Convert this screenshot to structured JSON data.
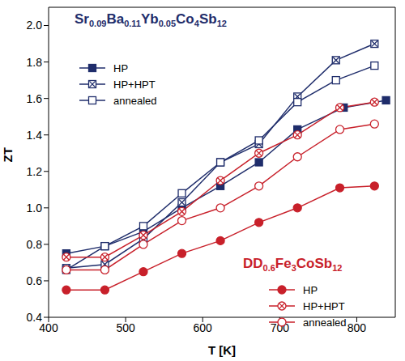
{
  "chart_data": {
    "type": "line",
    "x_label": "T [K]",
    "y_label": "ZT",
    "xlim": [
      400,
      850
    ],
    "xticks": [
      400,
      500,
      600,
      700,
      800
    ],
    "ylim": [
      0.4,
      2.1
    ],
    "yticks": [
      0.4,
      0.6,
      0.8,
      {
        "value": 1,
        "label": "1.0"
      },
      1.2,
      1.4,
      1.6,
      1.8,
      {
        "value": 2,
        "label": "2.0"
      }
    ],
    "grid": false,
    "groups": [
      "Sr0.09Ba0.11Yb0.05Co4Sb12",
      "DD0.6Fe3CoSb12"
    ],
    "series": [
      {
        "name": "HP",
        "group": 0,
        "color": "#1f2d6b",
        "marker": "square",
        "x": [
          423,
          473,
          523,
          573,
          623,
          673,
          723,
          783,
          838
        ],
        "values": [
          0.75,
          0.79,
          0.87,
          1.0,
          1.12,
          1.25,
          1.43,
          1.55,
          1.59
        ]
      },
      {
        "name": "HP+HPT",
        "group": 0,
        "color": "#1f2d6b",
        "marker": "square_x",
        "x": [
          423,
          473,
          523,
          573,
          623,
          673,
          723,
          773,
          823
        ],
        "values": [
          0.67,
          0.69,
          0.83,
          1.03,
          1.25,
          1.35,
          1.61,
          1.81,
          1.9
        ]
      },
      {
        "name": "annealed",
        "group": 0,
        "color": "#1f2d6b",
        "marker": "square_open",
        "x": [
          423,
          473,
          523,
          573,
          623,
          673,
          723,
          773,
          823
        ],
        "values": [
          0.66,
          0.79,
          0.9,
          1.08,
          1.25,
          1.37,
          1.58,
          1.7,
          1.78
        ]
      },
      {
        "name": "HP",
        "group": 1,
        "color": "#c8202a",
        "marker": "circle",
        "x": [
          423,
          473,
          523,
          573,
          623,
          673,
          723,
          778,
          823
        ],
        "values": [
          0.55,
          0.55,
          0.65,
          0.75,
          0.82,
          0.92,
          1.0,
          1.11,
          1.12
        ]
      },
      {
        "name": "HP+HPT",
        "group": 1,
        "color": "#c8202a",
        "marker": "circle_x",
        "x": [
          423,
          473,
          523,
          573,
          623,
          673,
          723,
          778,
          823
        ],
        "values": [
          0.73,
          0.73,
          0.85,
          0.98,
          1.15,
          1.3,
          1.4,
          1.55,
          1.58
        ]
      },
      {
        "name": "annealed",
        "group": 1,
        "color": "#c8202a",
        "marker": "circle_open",
        "x": [
          423,
          473,
          523,
          573,
          623,
          673,
          723,
          778,
          823
        ],
        "values": [
          0.66,
          0.66,
          0.8,
          0.93,
          1.0,
          1.12,
          1.28,
          1.43,
          1.46
        ]
      }
    ]
  }
}
